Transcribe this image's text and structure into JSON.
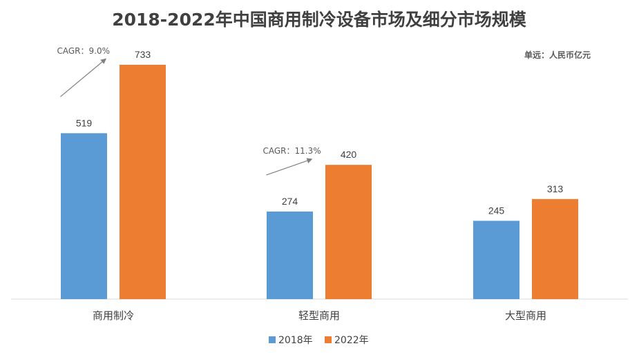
{
  "chart_data": {
    "type": "bar",
    "title": "2018-2022年中国商用制冷设备市场及细分市场规模",
    "unit": "单远：人民币亿元",
    "categories": [
      "商用制冷",
      "轻型商用",
      "大型商用"
    ],
    "series": [
      {
        "name": "2018年",
        "values": [
          519,
          274,
          245
        ],
        "color": "#5B9BD5"
      },
      {
        "name": "2022年",
        "values": [
          733,
          420,
          313
        ],
        "color": "#ED7D31"
      }
    ],
    "ylim": [
      0,
      733
    ],
    "annotations": [
      {
        "category": "商用制冷",
        "text": "CAGR：9.0%"
      },
      {
        "category": "轻型商用",
        "text": "CAGR：11.3%"
      }
    ],
    "legend_position": "bottom",
    "grid": false
  }
}
